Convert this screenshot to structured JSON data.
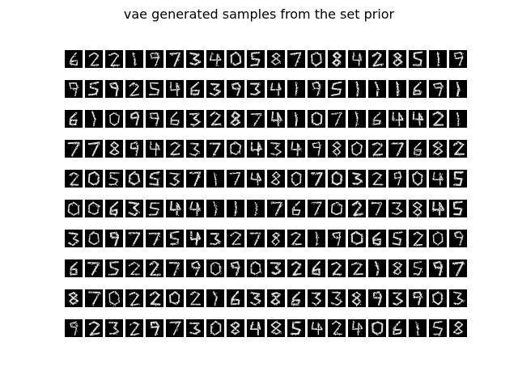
{
  "figure": {
    "title": "vae generated samples from the set prior"
  },
  "samples": {
    "rows": 10,
    "cols": 20,
    "tile_description": "28x28 grayscale generated digit images (white strokes on black)",
    "colors": {
      "tile_background": "#000000",
      "stroke": "#ffffff",
      "page_background": "#ffffff"
    }
  }
}
